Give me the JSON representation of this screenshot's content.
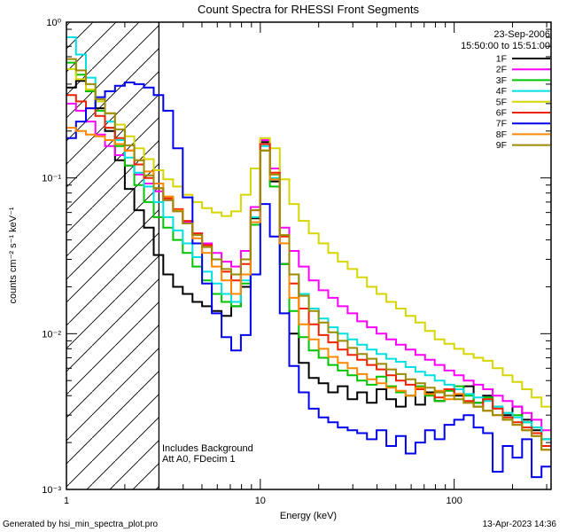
{
  "footer": {
    "left": "Generated by hsi_min_spectra_plot.pro",
    "right": "13-Apr-2023 14:36"
  },
  "chart_data": {
    "type": "line",
    "subtype": "step-histogram-loglog",
    "title": "Count Spectra for RHESSI Front Segments",
    "date_label": "23-Sep-2006",
    "time_label": "15:50:00 to 15:51:00",
    "xlabel": "Energy (keV)",
    "ylabel": "counts cm⁻² s⁻¹ keV⁻¹",
    "annotation1": "Includes Background",
    "annotation2": "Att A0, FDecim 1",
    "xrange": [
      1,
      316
    ],
    "yrange": [
      0.001,
      1
    ],
    "grid": false,
    "legend_position": "top-right",
    "hatch_end_keV": 3,
    "x_ticks": [
      {
        "value": 1,
        "label": "1"
      },
      {
        "value": 10,
        "label": "10"
      },
      {
        "value": 100,
        "label": "100"
      }
    ],
    "y_ticks": [
      {
        "value": 0.001,
        "label": "10⁻³"
      },
      {
        "value": 0.01,
        "label": "10⁻²"
      },
      {
        "value": 0.1,
        "label": "10⁻¹"
      },
      {
        "value": 1,
        "label": "10⁰"
      }
    ],
    "energies_keV": [
      1.0,
      1.12,
      1.26,
      1.41,
      1.58,
      1.78,
      2.0,
      2.24,
      2.51,
      2.82,
      3.16,
      3.55,
      3.98,
      4.47,
      5.01,
      5.62,
      6.31,
      7.08,
      7.94,
      8.91,
      10.0,
      11.2,
      12.6,
      14.1,
      15.8,
      17.8,
      20.0,
      22.4,
      25.1,
      28.2,
      31.6,
      35.5,
      39.8,
      44.7,
      50.1,
      56.2,
      63.1,
      70.8,
      79.4,
      89.1,
      100,
      112,
      126,
      141,
      158,
      178,
      200,
      224,
      251,
      282
    ],
    "series": [
      {
        "name": "1F",
        "color": "#000000",
        "values": [
          0.38,
          0.42,
          0.36,
          0.28,
          0.2,
          0.13,
          0.085,
          0.062,
          0.048,
          0.032,
          0.024,
          0.02,
          0.018,
          0.016,
          0.015,
          0.014,
          0.013,
          0.015,
          0.02,
          0.055,
          0.17,
          0.095,
          0.028,
          0.01,
          0.0065,
          0.0052,
          0.0048,
          0.0042,
          0.0046,
          0.0038,
          0.0042,
          0.0036,
          0.0044,
          0.0038,
          0.0034,
          0.004,
          0.0035,
          0.0042,
          0.0037,
          0.0044,
          0.004,
          0.0046,
          0.0036,
          0.004,
          0.0034,
          0.003,
          0.0034,
          0.0028,
          0.0024,
          0.0021
        ]
      },
      {
        "name": "2F",
        "color": "#ff00ff",
        "values": [
          0.3,
          0.27,
          0.23,
          0.19,
          0.16,
          0.14,
          0.12,
          0.105,
          0.092,
          0.082,
          0.072,
          0.062,
          0.052,
          0.044,
          0.038,
          0.033,
          0.029,
          0.027,
          0.034,
          0.065,
          0.175,
          0.115,
          0.048,
          0.034,
          0.027,
          0.022,
          0.019,
          0.017,
          0.015,
          0.0135,
          0.012,
          0.011,
          0.01,
          0.0092,
          0.0085,
          0.0079,
          0.0073,
          0.0068,
          0.0063,
          0.0058,
          0.0054,
          0.005,
          0.0047,
          0.0044,
          0.004,
          0.0037,
          0.0034,
          0.0031,
          0.0028,
          0.0024
        ]
      },
      {
        "name": "3F",
        "color": "#00c400",
        "values": [
          0.55,
          0.46,
          0.36,
          0.27,
          0.21,
          0.16,
          0.12,
          0.09,
          0.07,
          0.056,
          0.048,
          0.04,
          0.033,
          0.027,
          0.022,
          0.018,
          0.016,
          0.015,
          0.021,
          0.05,
          0.15,
          0.088,
          0.028,
          0.014,
          0.0095,
          0.0078,
          0.007,
          0.0063,
          0.0058,
          0.0054,
          0.005,
          0.0047,
          0.0053,
          0.0046,
          0.0042,
          0.004,
          0.0046,
          0.004,
          0.0037,
          0.0043,
          0.0046,
          0.004,
          0.0036,
          0.0039,
          0.0034,
          0.0031,
          0.003,
          0.0027,
          0.0025,
          0.0021
        ]
      },
      {
        "name": "4F",
        "color": "#00e0e0",
        "values": [
          0.8,
          0.62,
          0.44,
          0.31,
          0.23,
          0.175,
          0.135,
          0.108,
          0.088,
          0.07,
          0.056,
          0.046,
          0.038,
          0.031,
          0.025,
          0.021,
          0.018,
          0.016,
          0.022,
          0.056,
          0.16,
          0.1,
          0.038,
          0.024,
          0.018,
          0.0145,
          0.0125,
          0.011,
          0.01,
          0.0092,
          0.0085,
          0.0079,
          0.0074,
          0.0069,
          0.0066,
          0.0061,
          0.0057,
          0.0054,
          0.005,
          0.0047,
          0.0044,
          0.0041,
          0.0039,
          0.0037,
          0.0034,
          0.0031,
          0.0029,
          0.0027,
          0.0025,
          0.0021
        ]
      },
      {
        "name": "5F",
        "color": "#d6d600",
        "values": [
          0.5,
          0.43,
          0.37,
          0.31,
          0.26,
          0.22,
          0.185,
          0.155,
          0.132,
          0.112,
          0.098,
          0.088,
          0.078,
          0.07,
          0.064,
          0.06,
          0.057,
          0.061,
          0.078,
          0.115,
          0.18,
          0.155,
          0.098,
          0.068,
          0.053,
          0.044,
          0.038,
          0.033,
          0.029,
          0.026,
          0.023,
          0.02,
          0.018,
          0.016,
          0.0145,
          0.013,
          0.0118,
          0.0104,
          0.0092,
          0.0086,
          0.008,
          0.0074,
          0.007,
          0.0067,
          0.006,
          0.0054,
          0.0049,
          0.0044,
          0.0039,
          0.0034
        ]
      },
      {
        "name": "6F",
        "color": "#ee2200",
        "values": [
          0.34,
          0.31,
          0.28,
          0.25,
          0.21,
          0.18,
          0.15,
          0.122,
          0.1,
          0.086,
          0.074,
          0.063,
          0.053,
          0.044,
          0.037,
          0.03,
          0.025,
          0.022,
          0.028,
          0.062,
          0.165,
          0.108,
          0.042,
          0.021,
          0.0145,
          0.0115,
          0.0098,
          0.0088,
          0.0079,
          0.0073,
          0.0068,
          0.0063,
          0.0059,
          0.0054,
          0.005,
          0.0047,
          0.0044,
          0.0041,
          0.0039,
          0.0044,
          0.0041,
          0.0037,
          0.0034,
          0.0038,
          0.0033,
          0.0029,
          0.0027,
          0.0025,
          0.0023,
          0.0019
        ]
      },
      {
        "name": "7F",
        "color": "#0000ee",
        "values": [
          0.18,
          0.23,
          0.28,
          0.33,
          0.36,
          0.39,
          0.41,
          0.4,
          0.38,
          0.34,
          0.27,
          0.155,
          0.075,
          0.038,
          0.021,
          0.0135,
          0.0095,
          0.0078,
          0.0098,
          0.024,
          0.068,
          0.042,
          0.0135,
          0.0062,
          0.0042,
          0.0033,
          0.0029,
          0.0027,
          0.0025,
          0.0024,
          0.0023,
          0.0021,
          0.0024,
          0.0019,
          0.0022,
          0.0017,
          0.002,
          0.0024,
          0.0021,
          0.0026,
          0.0028,
          0.003,
          0.0025,
          0.0023,
          0.0013,
          0.0019,
          0.0016,
          0.0021,
          0.0012,
          0.0014
        ]
      },
      {
        "name": "8F",
        "color": "#ff8800",
        "values": [
          0.21,
          0.2,
          0.19,
          0.185,
          0.175,
          0.165,
          0.15,
          0.13,
          0.11,
          0.092,
          0.076,
          0.062,
          0.051,
          0.041,
          0.033,
          0.027,
          0.022,
          0.018,
          0.024,
          0.052,
          0.15,
          0.098,
          0.038,
          0.017,
          0.0115,
          0.0092,
          0.008,
          0.0071,
          0.0065,
          0.006,
          0.0055,
          0.0051,
          0.0048,
          0.0045,
          0.0043,
          0.004,
          0.0045,
          0.0041,
          0.0043,
          0.0038,
          0.0041,
          0.0036,
          0.0034,
          0.0032,
          0.003,
          0.0028,
          0.0026,
          0.0024,
          0.0022,
          0.0018
        ]
      },
      {
        "name": "9F",
        "color": "#9c8a00",
        "values": [
          0.58,
          0.49,
          0.4,
          0.32,
          0.26,
          0.205,
          0.162,
          0.13,
          0.104,
          0.086,
          0.072,
          0.061,
          0.051,
          0.043,
          0.036,
          0.03,
          0.026,
          0.024,
          0.03,
          0.062,
          0.15,
          0.105,
          0.043,
          0.024,
          0.0175,
          0.014,
          0.0118,
          0.0102,
          0.009,
          0.0081,
          0.0074,
          0.0069,
          0.0064,
          0.0059,
          0.0055,
          0.0051,
          0.0048,
          0.0045,
          0.0042,
          0.004,
          0.0038,
          0.0036,
          0.0034,
          0.0032,
          0.003,
          0.0028,
          0.0026,
          0.0024,
          0.0022,
          0.0018
        ]
      }
    ]
  }
}
